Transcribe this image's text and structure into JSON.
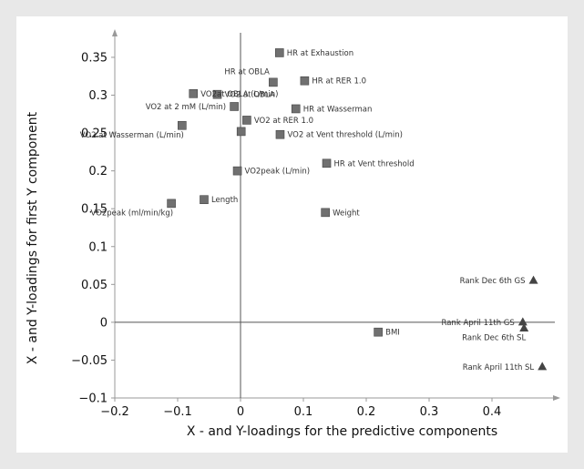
{
  "chart_data": {
    "type": "scatter",
    "xlabel": "X - and Y-loadings for the predictive components",
    "ylabel": "X - and Y-loadings for first Y component",
    "xlim": [
      -0.2,
      0.5
    ],
    "ylim": [
      -0.1,
      0.38
    ],
    "xticks": [
      -0.2,
      -0.1,
      0,
      0.1,
      0.2,
      0.3,
      0.4
    ],
    "xtick_labels": [
      "−0.2",
      "−0.1",
      "0",
      "0.1",
      "0.2",
      "0.3",
      "0.4"
    ],
    "yticks": [
      -0.1,
      -0.05,
      0,
      0.05,
      0.1,
      0.15,
      0.2,
      0.25,
      0.3,
      0.35
    ],
    "ytick_labels": [
      "−0.1",
      "−0.05",
      "0",
      "0.05",
      "0.1",
      "0.15",
      "0.2",
      "0.25",
      "0.3",
      "0.35"
    ],
    "grid": false,
    "marker_color": "#707070",
    "series": [
      {
        "marker": "square",
        "points": [
          {
            "x": 0.062,
            "y": 0.356,
            "label": "HR at Exhaustion",
            "label_pos": "right"
          },
          {
            "x": 0.052,
            "y": 0.317,
            "label": "HR at OBLA",
            "label_pos": "above-left"
          },
          {
            "x": 0.102,
            "y": 0.319,
            "label": "HR at RER 1.0",
            "label_pos": "right"
          },
          {
            "x": -0.075,
            "y": 0.302,
            "label": "VO2at OBLA (L/min)",
            "label_pos": "right"
          },
          {
            "x": -0.037,
            "y": 0.301,
            "label": "VO2 at OBLA",
            "label_pos": "right"
          },
          {
            "x": -0.01,
            "y": 0.285,
            "label": "VO2 at 2 mM (L/min)",
            "label_pos": "left"
          },
          {
            "x": 0.088,
            "y": 0.282,
            "label": "HR at Wasserman",
            "label_pos": "right"
          },
          {
            "x": 0.01,
            "y": 0.267,
            "label": "VO2 at RER 1.0",
            "label_pos": "right"
          },
          {
            "x": -0.093,
            "y": 0.26,
            "label": "VO2 at Wasserman (L/min)",
            "label_pos": "below-left"
          },
          {
            "x": 0.001,
            "y": 0.252,
            "label": "",
            "label_pos": "right"
          },
          {
            "x": 0.063,
            "y": 0.248,
            "label": "VO2 at Vent threshold (L/min)",
            "label_pos": "right"
          },
          {
            "x": 0.137,
            "y": 0.21,
            "label": "HR at Vent threshold",
            "label_pos": "right"
          },
          {
            "x": -0.005,
            "y": 0.2,
            "label": "VO2peak (L/min)",
            "label_pos": "right"
          },
          {
            "x": -0.058,
            "y": 0.162,
            "label": "Length",
            "label_pos": "right"
          },
          {
            "x": -0.11,
            "y": 0.157,
            "label": "VO2peak (ml/min/kg)",
            "label_pos": "below-left"
          },
          {
            "x": 0.135,
            "y": 0.145,
            "label": "Weight",
            "label_pos": "right"
          },
          {
            "x": 0.219,
            "y": -0.013,
            "label": "BMI",
            "label_pos": "right"
          }
        ]
      },
      {
        "marker": "triangle",
        "points": [
          {
            "x": 0.466,
            "y": 0.055,
            "label": "Rank Dec 6th GS",
            "label_pos": "left"
          },
          {
            "x": 0.449,
            "y": 0.0,
            "label": "Rank April 11th GS",
            "label_pos": "left"
          },
          {
            "x": 0.451,
            "y": -0.008,
            "label": "Rank Dec 6th SL",
            "label_pos": "below-left"
          },
          {
            "x": 0.48,
            "y": -0.059,
            "label": "Rank April 11th SL",
            "label_pos": "left"
          }
        ]
      }
    ]
  }
}
